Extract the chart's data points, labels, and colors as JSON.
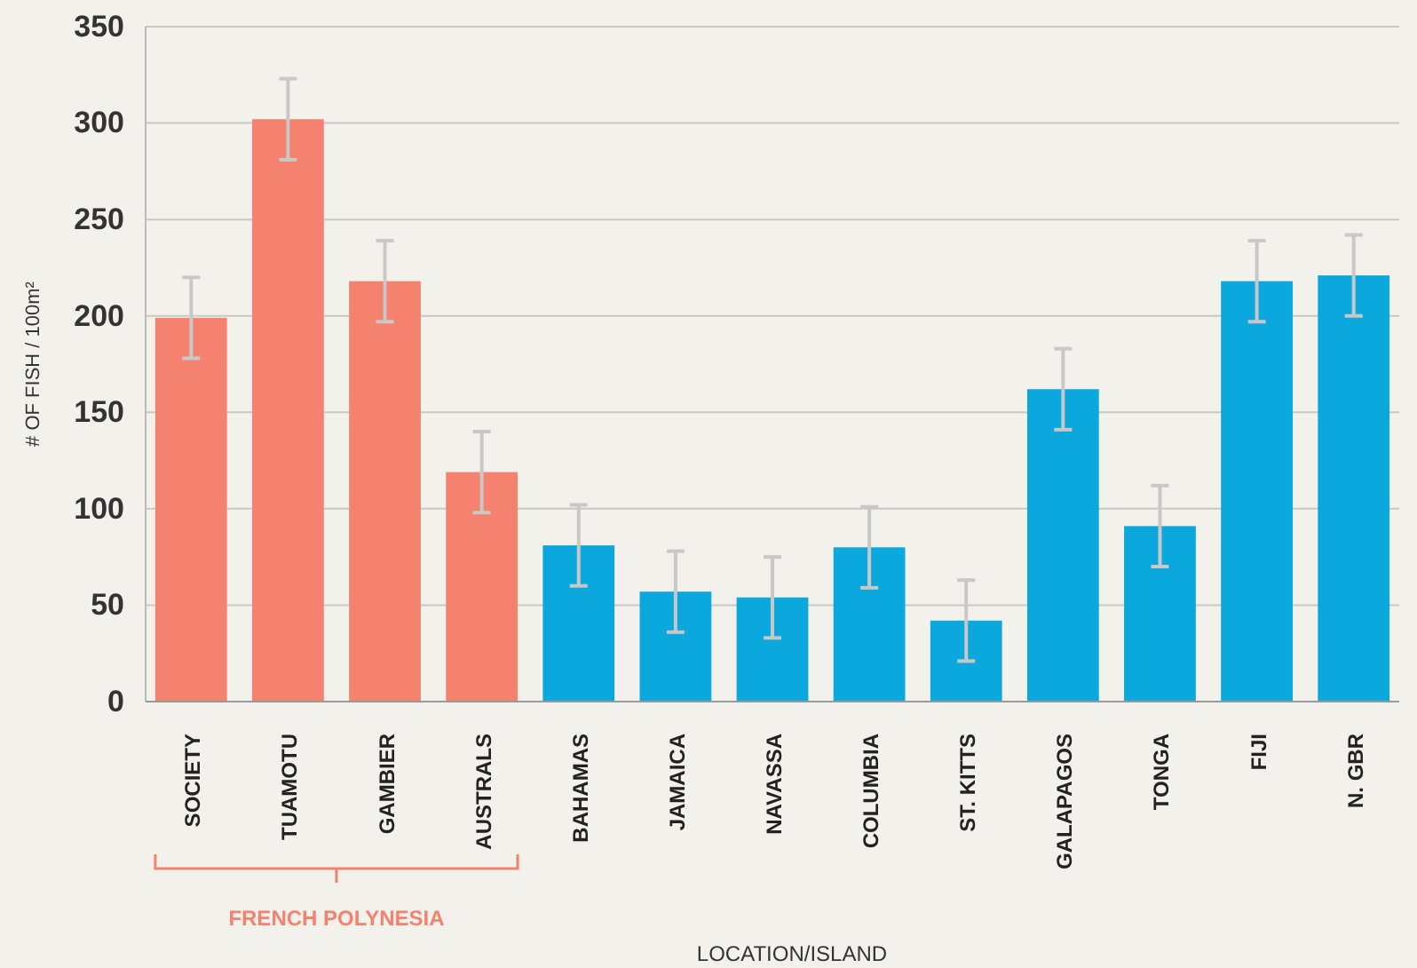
{
  "chart_data": {
    "type": "bar",
    "xlabel": "LOCATION/ISLAND",
    "ylabel": "# OF FISH / 100m²",
    "categories": [
      "SOCIETY",
      "TUAMOTU",
      "GAMBIER",
      "AUSTRALS",
      "BAHAMAS",
      "JAMAICA",
      "NAVASSA",
      "COLUMBIA",
      "ST. KITTS",
      "GALAPAGOS",
      "TONGA",
      "FIJI",
      "N. GBR"
    ],
    "values": [
      199,
      302,
      218,
      119,
      81,
      57,
      54,
      80,
      42,
      162,
      91,
      218,
      221
    ],
    "errors": [
      21,
      21,
      21,
      21,
      21,
      21,
      21,
      21,
      21,
      21,
      21,
      21,
      21
    ],
    "colors": [
      "#f4826f",
      "#f4826f",
      "#f4826f",
      "#f4826f",
      "#0aa8dd",
      "#0aa8dd",
      "#0aa8dd",
      "#0aa8dd",
      "#0aa8dd",
      "#0aa8dd",
      "#0aa8dd",
      "#0aa8dd",
      "#0aa8dd"
    ],
    "ylim": [
      0,
      350
    ],
    "yticks": [
      0,
      50,
      100,
      150,
      200,
      250,
      300,
      350
    ],
    "grid": "y",
    "annotations": [
      "FRENCH POLYNESIA"
    ]
  }
}
